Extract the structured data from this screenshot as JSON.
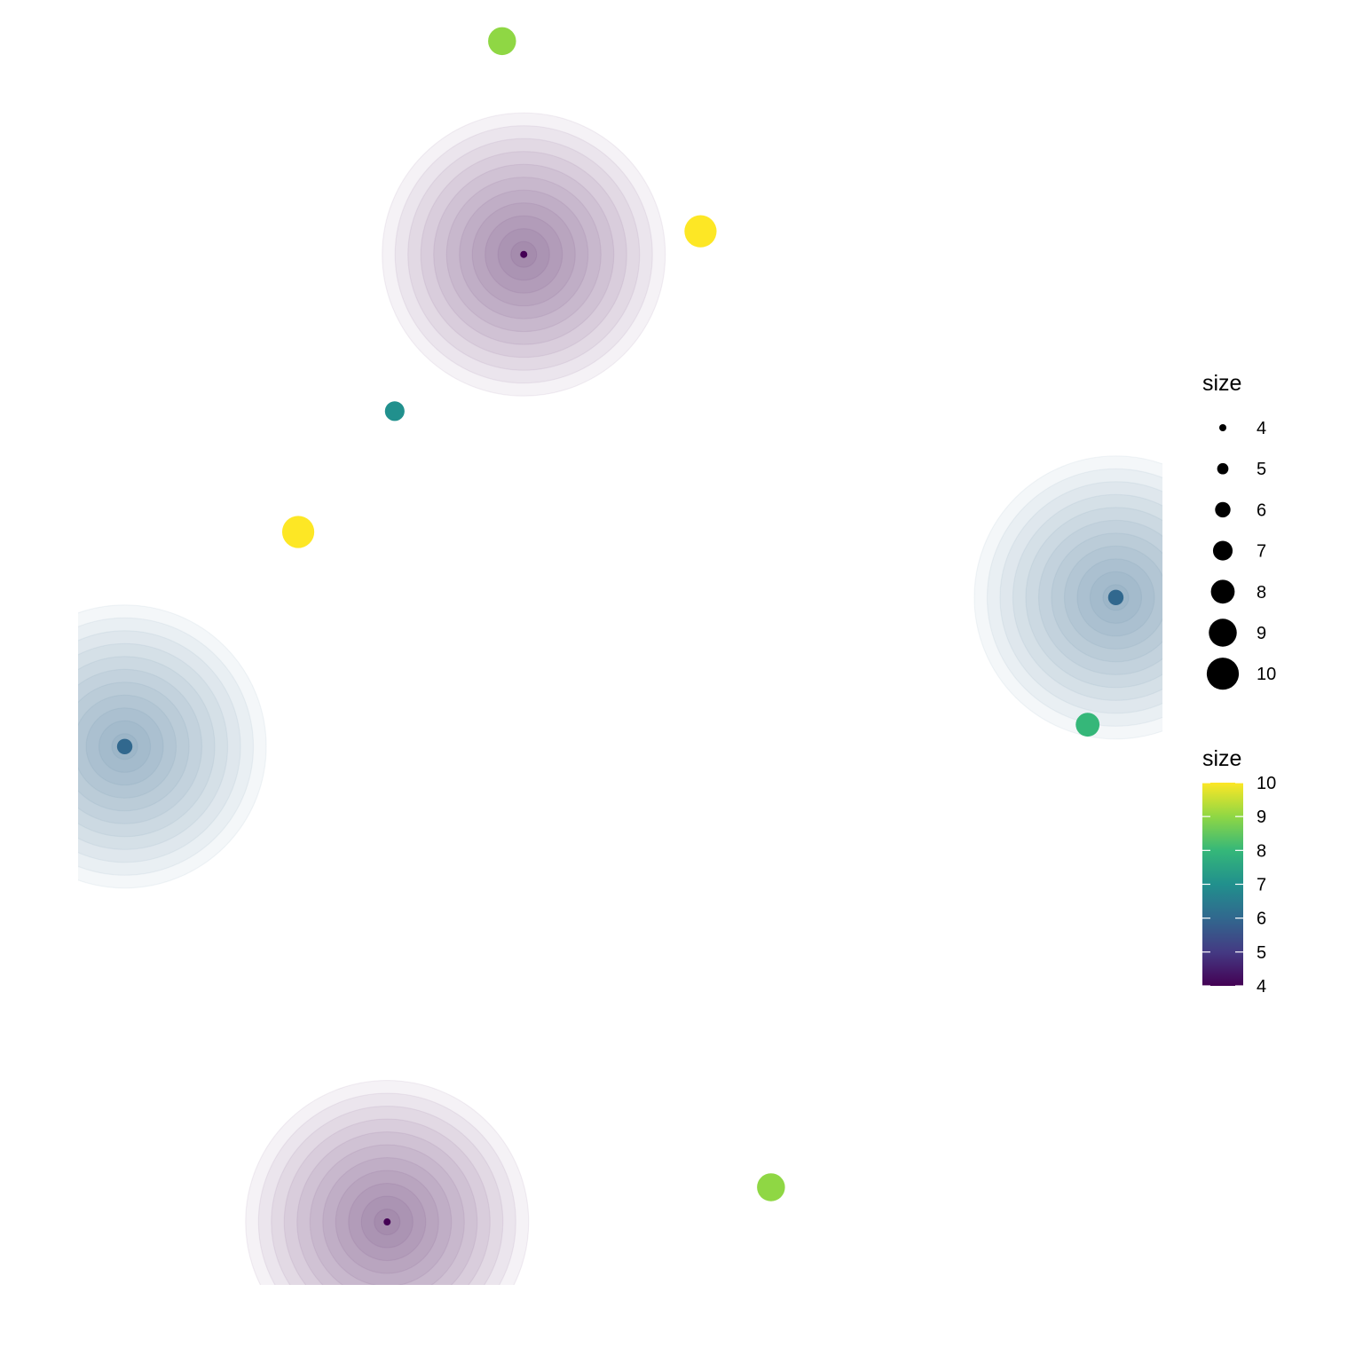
{
  "chart_data": {
    "type": "scatter",
    "title": "",
    "xlabel": "",
    "ylabel": "",
    "xlim": [
      0,
      1
    ],
    "ylim": [
      0,
      1
    ],
    "axes_visible": false,
    "grid": false,
    "points": [
      {
        "x": 0.391,
        "y": 0.968,
        "size": 9
      },
      {
        "x": 0.411,
        "y": 0.802,
        "size": 4
      },
      {
        "x": 0.574,
        "y": 0.82,
        "size": 10
      },
      {
        "x": 0.292,
        "y": 0.68,
        "size": 7
      },
      {
        "x": 0.203,
        "y": 0.586,
        "size": 10
      },
      {
        "x": 0.043,
        "y": 0.419,
        "size": 6
      },
      {
        "x": 0.957,
        "y": 0.535,
        "size": 6
      },
      {
        "x": 0.931,
        "y": 0.436,
        "size": 8
      },
      {
        "x": 0.285,
        "y": 0.049,
        "size": 4
      },
      {
        "x": 0.639,
        "y": 0.076,
        "size": 9
      }
    ],
    "halo_points": [
      {
        "x": 0.411,
        "y": 0.802,
        "size": 4
      },
      {
        "x": 0.043,
        "y": 0.419,
        "size": 6
      },
      {
        "x": 0.957,
        "y": 0.535,
        "size": 6
      },
      {
        "x": 0.285,
        "y": 0.049,
        "size": 4
      }
    ],
    "legend_position": "right",
    "size_legend": {
      "title": "size",
      "labels": [
        "4",
        "5",
        "6",
        "7",
        "8",
        "9",
        "10"
      ],
      "values": [
        4,
        5,
        6,
        7,
        8,
        9,
        10
      ]
    },
    "color_legend": {
      "title": "size",
      "labels": [
        "10",
        "9",
        "8",
        "7",
        "6",
        "5",
        "4"
      ],
      "values": [
        10,
        9,
        8,
        7,
        6,
        5,
        4
      ],
      "colormap": "viridis",
      "range": [
        4,
        10
      ]
    },
    "colors": {
      "4": "#440154",
      "5": "#443a83",
      "6": "#31688e",
      "7": "#21908d",
      "8": "#35b779",
      "9": "#8fd744",
      "10": "#fde725"
    }
  }
}
